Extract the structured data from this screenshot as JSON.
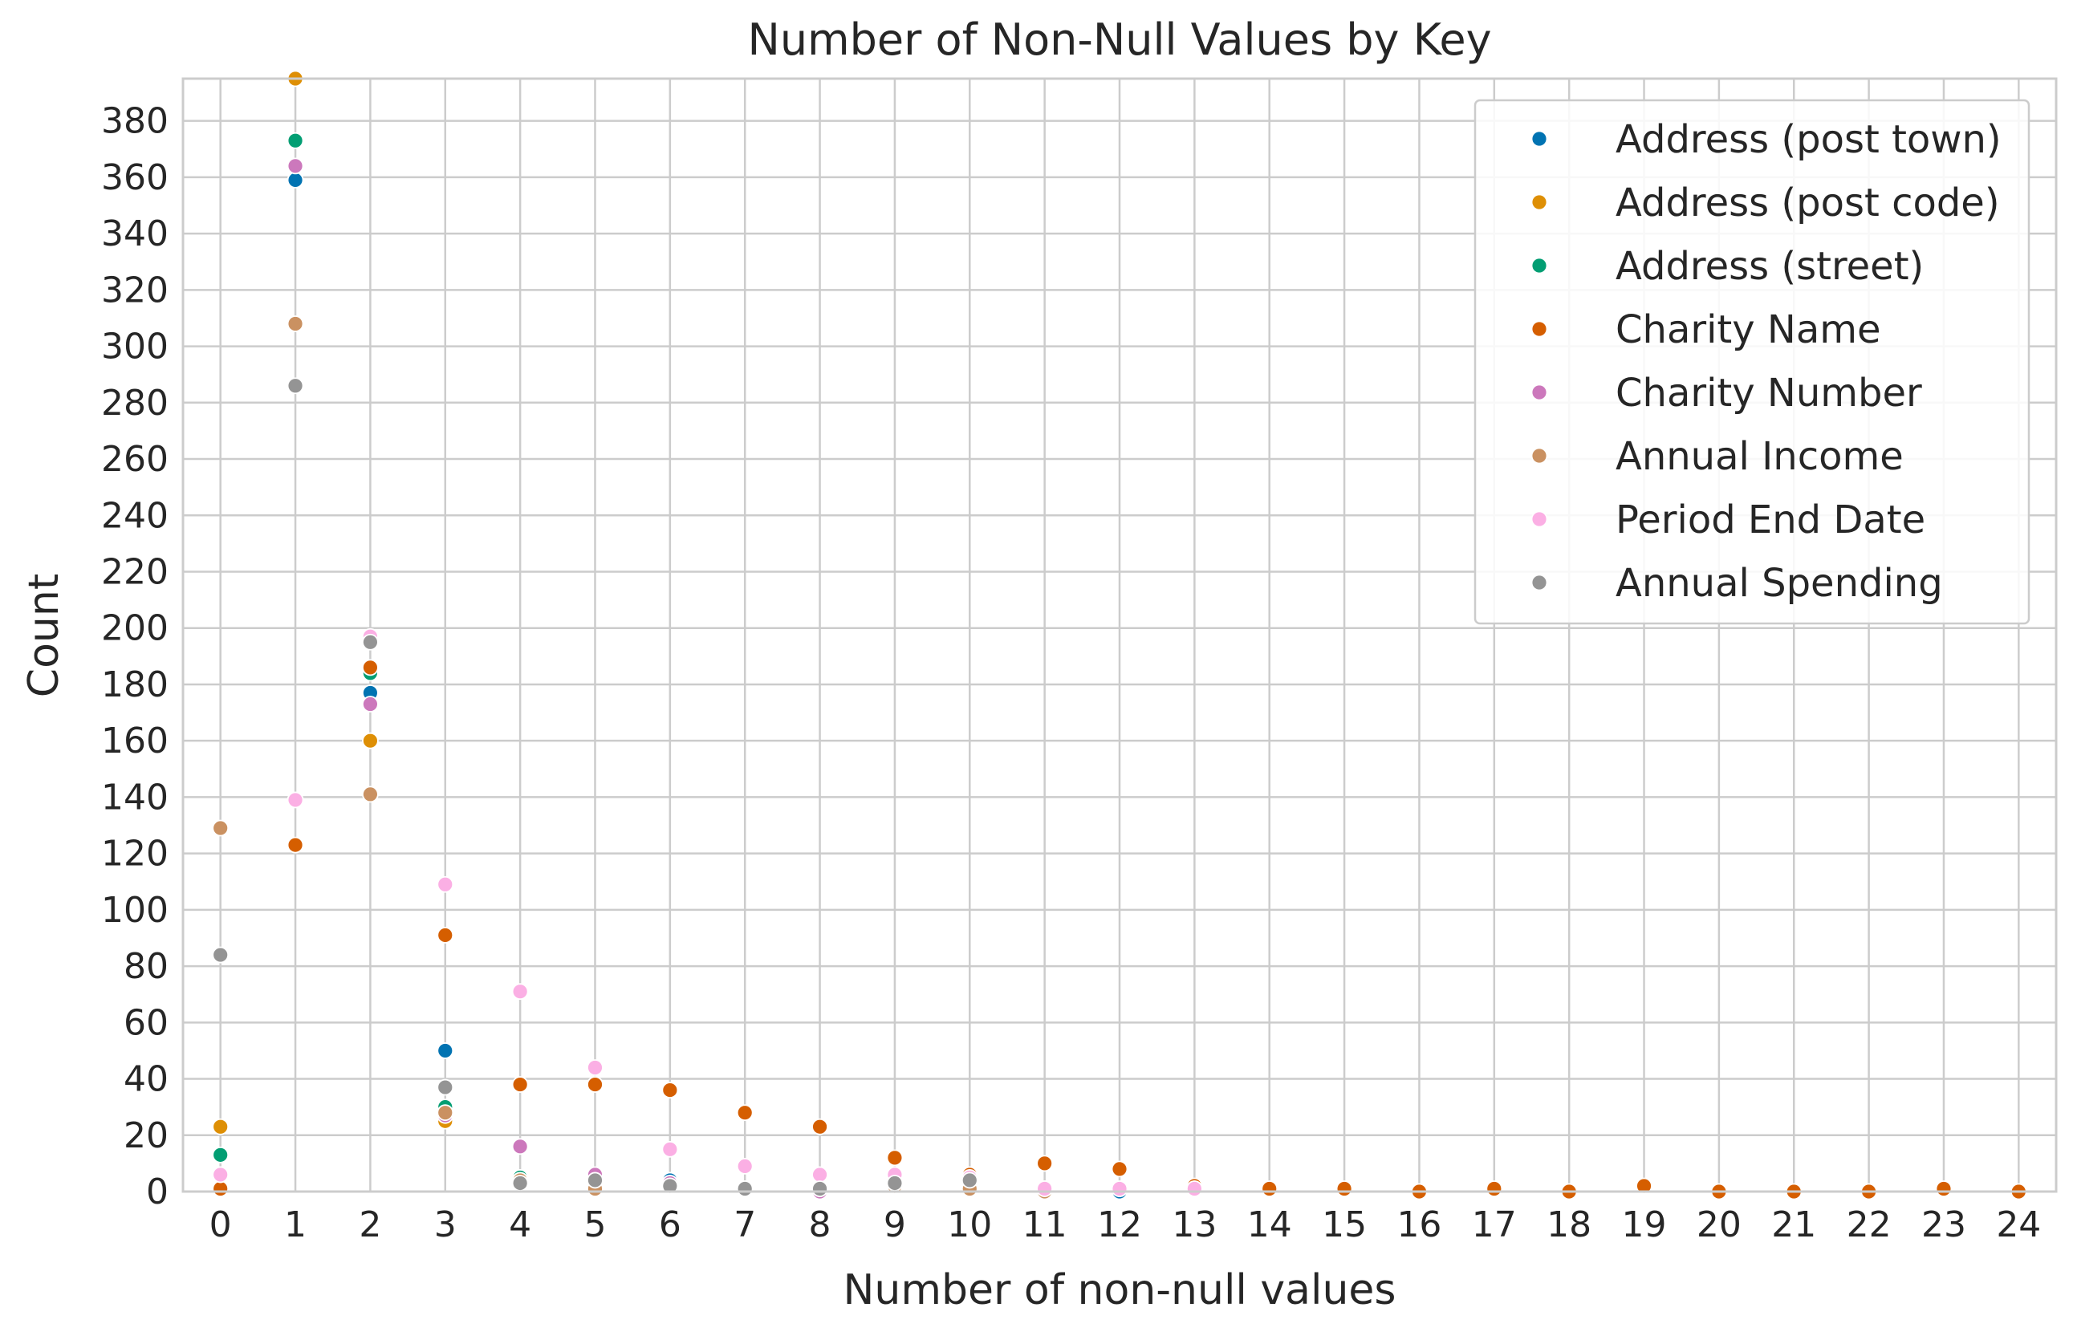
{
  "chart_data": {
    "type": "scatter",
    "title": "Number of Non-Null Values by Key",
    "xlabel": "Number of non-null values",
    "ylabel": "Count",
    "xlim": [
      -0.5,
      24.5
    ],
    "ylim": [
      0,
      395
    ],
    "x_ticks": [
      0,
      1,
      2,
      3,
      4,
      5,
      6,
      7,
      8,
      9,
      10,
      11,
      12,
      13,
      14,
      15,
      16,
      17,
      18,
      19,
      20,
      21,
      22,
      23,
      24
    ],
    "y_ticks": [
      0,
      20,
      40,
      60,
      80,
      100,
      120,
      140,
      160,
      180,
      200,
      220,
      240,
      260,
      280,
      300,
      320,
      340,
      360,
      380
    ],
    "grid": true,
    "legend_position": "top-right",
    "series": [
      {
        "name": "Address (post town)",
        "color": "#0173b2",
        "points": [
          [
            0,
            6
          ],
          [
            1,
            359
          ],
          [
            2,
            177
          ],
          [
            3,
            50
          ],
          [
            4,
            5
          ],
          [
            5,
            2
          ],
          [
            6,
            4
          ],
          [
            7,
            1
          ],
          [
            8,
            1
          ],
          [
            9,
            3
          ],
          [
            10,
            1
          ],
          [
            11,
            1
          ],
          [
            12,
            0
          ]
        ]
      },
      {
        "name": "Address (post code)",
        "color": "#de8f05",
        "points": [
          [
            0,
            23
          ],
          [
            1,
            395
          ],
          [
            2,
            160
          ],
          [
            3,
            25
          ],
          [
            4,
            3
          ],
          [
            5,
            2
          ],
          [
            6,
            2
          ],
          [
            7,
            1
          ],
          [
            8,
            0
          ],
          [
            9,
            3
          ],
          [
            10,
            2
          ]
        ]
      },
      {
        "name": "Address (street)",
        "color": "#029e73",
        "points": [
          [
            0,
            13
          ],
          [
            1,
            373
          ],
          [
            2,
            184
          ],
          [
            3,
            30
          ],
          [
            4,
            5
          ],
          [
            5,
            3
          ],
          [
            6,
            3
          ],
          [
            7,
            1
          ],
          [
            8,
            1
          ],
          [
            9,
            3
          ],
          [
            10,
            2
          ],
          [
            11,
            1
          ]
        ]
      },
      {
        "name": "Charity Name",
        "color": "#d55e00",
        "points": [
          [
            0,
            1
          ],
          [
            1,
            123
          ],
          [
            2,
            186
          ],
          [
            3,
            91
          ],
          [
            4,
            38
          ],
          [
            5,
            38
          ],
          [
            6,
            36
          ],
          [
            7,
            28
          ],
          [
            8,
            23
          ],
          [
            9,
            12
          ],
          [
            10,
            6
          ],
          [
            11,
            10
          ],
          [
            12,
            8
          ],
          [
            13,
            2
          ],
          [
            14,
            1
          ],
          [
            15,
            1
          ],
          [
            16,
            0
          ],
          [
            17,
            1
          ],
          [
            18,
            0
          ],
          [
            19,
            2
          ],
          [
            20,
            0
          ],
          [
            21,
            0
          ],
          [
            22,
            0
          ],
          [
            23,
            1
          ],
          [
            24,
            0
          ]
        ]
      },
      {
        "name": "Charity Number",
        "color": "#cc78bc",
        "points": [
          [
            0,
            6
          ],
          [
            1,
            364
          ],
          [
            2,
            173
          ],
          [
            3,
            27
          ],
          [
            4,
            16
          ],
          [
            5,
            6
          ],
          [
            6,
            3
          ],
          [
            7,
            1
          ],
          [
            8,
            0
          ],
          [
            9,
            2
          ],
          [
            10,
            1
          ],
          [
            11,
            1
          ]
        ]
      },
      {
        "name": "Annual Income",
        "color": "#ca9161",
        "points": [
          [
            0,
            129
          ],
          [
            1,
            308
          ],
          [
            2,
            141
          ],
          [
            3,
            28
          ],
          [
            4,
            4
          ],
          [
            5,
            1
          ],
          [
            6,
            2
          ],
          [
            7,
            1
          ],
          [
            8,
            1
          ],
          [
            9,
            2
          ],
          [
            10,
            1
          ],
          [
            11,
            0
          ],
          [
            12,
            1
          ],
          [
            13,
            1
          ]
        ]
      },
      {
        "name": "Period End Date",
        "color": "#fbafe4",
        "points": [
          [
            0,
            6
          ],
          [
            1,
            139
          ],
          [
            2,
            197
          ],
          [
            3,
            109
          ],
          [
            4,
            71
          ],
          [
            5,
            44
          ],
          [
            6,
            15
          ],
          [
            7,
            9
          ],
          [
            8,
            6
          ],
          [
            9,
            6
          ],
          [
            10,
            5
          ],
          [
            11,
            1
          ],
          [
            12,
            1
          ],
          [
            13,
            1
          ]
        ]
      },
      {
        "name": "Annual Spending",
        "color": "#949494",
        "points": [
          [
            0,
            84
          ],
          [
            1,
            286
          ],
          [
            2,
            195
          ],
          [
            3,
            37
          ],
          [
            4,
            3
          ],
          [
            5,
            4
          ],
          [
            6,
            2
          ],
          [
            7,
            1
          ],
          [
            8,
            1
          ],
          [
            9,
            3
          ],
          [
            10,
            4
          ]
        ]
      }
    ]
  }
}
